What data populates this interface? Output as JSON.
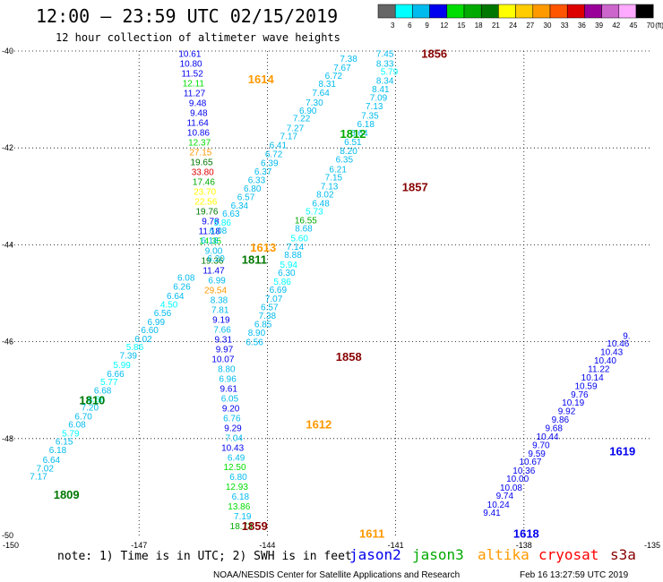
{
  "header": {
    "title": "12:00 – 23:59 UTC 02/15/2019",
    "subtitle": "12 hour collection of altimeter wave heights"
  },
  "colorbar": {
    "ticks": [
      "3",
      "6",
      "9",
      "12",
      "15",
      "18",
      "21",
      "24",
      "27",
      "30",
      "33",
      "36",
      "39",
      "42",
      "45",
      "70"
    ],
    "unit": "(ft)",
    "colors": [
      "#666666",
      "#00ffff",
      "#00bbee",
      "#0000ee",
      "#00dd00",
      "#00aa00",
      "#007700",
      "#ffff00",
      "#ffcc00",
      "#ff9900",
      "#ff5500",
      "#dd0000",
      "#990099",
      "#cc66cc",
      "#ffaaff",
      "#000000"
    ]
  },
  "axes": {
    "lon_labels": [
      "-150",
      "-147",
      "-144",
      "-141",
      "-138",
      "-135"
    ],
    "lat_labels": [
      "-40",
      "-42",
      "-44",
      "-46",
      "-48",
      "-50"
    ]
  },
  "footer": {
    "note": "note:  1) Time is in UTC;  2) SWH is in feet",
    "legend": [
      {
        "name": "jason2",
        "color": "#0000ee"
      },
      {
        "name": "jason3",
        "color": "#00aa00"
      },
      {
        "name": "altika",
        "color": "#ff9900"
      },
      {
        "name": "cryosat",
        "color": "#ff0000"
      },
      {
        "name": "s3a",
        "color": "#880000"
      }
    ],
    "credit": "NOAA/NESDIS Center for Satellite Applications and Research",
    "timestamp": "Feb 16 13:27:59 UTC 2019"
  },
  "tracks": [
    {
      "id": "1614",
      "label": "1614",
      "label_color": "#ff9900",
      "label_lon": -145.5,
      "label_lat": -40.57,
      "points": [
        {
          "v": "10.61",
          "c": "#0000ee"
        },
        {
          "v": "10.80",
          "c": "#0000ee"
        },
        {
          "v": "11.52",
          "c": "#0000ee"
        },
        {
          "v": "12.11",
          "c": "#00dd00"
        },
        {
          "v": "11.27",
          "c": "#0000ee"
        },
        {
          "v": "9.48",
          "c": "#0000ee"
        },
        {
          "v": "9.48",
          "c": "#0000ee"
        },
        {
          "v": "11.64",
          "c": "#0000ee"
        },
        {
          "v": "10.86",
          "c": "#0000ee"
        },
        {
          "v": "12.37",
          "c": "#00dd00"
        },
        {
          "v": "27.15",
          "c": "#ff9900"
        },
        {
          "v": "19.65",
          "c": "#007700"
        },
        {
          "v": "33.80",
          "c": "#dd0000"
        },
        {
          "v": "17.46",
          "c": "#00aa00"
        },
        {
          "v": "23.70",
          "c": "#ffff00"
        },
        {
          "v": "22.56",
          "c": "#ffff00"
        },
        {
          "v": "19.76",
          "c": "#007700"
        },
        {
          "v": "9.78",
          "c": "#0000ee"
        },
        {
          "v": "11.18",
          "c": "#0000ee"
        },
        {
          "v": "14.35",
          "c": "#00dd00"
        },
        {
          "v": "9.00",
          "c": "#00bbee"
        },
        {
          "v": "19.36",
          "c": "#007700"
        },
        {
          "v": "11.47",
          "c": "#0000ee"
        },
        {
          "v": "6.99",
          "c": "#00bbee"
        },
        {
          "v": "29.54",
          "c": "#ff9900"
        },
        {
          "v": "8.38",
          "c": "#00bbee"
        },
        {
          "v": "7.81",
          "c": "#00bbee"
        },
        {
          "v": "9.19",
          "c": "#0000ee"
        },
        {
          "v": "7.66",
          "c": "#00bbee"
        },
        {
          "v": "9.31",
          "c": "#0000ee"
        },
        {
          "v": "9.97",
          "c": "#0000ee"
        },
        {
          "v": "10.07",
          "c": "#0000ee"
        },
        {
          "v": "8.80",
          "c": "#00bbee"
        },
        {
          "v": "6.96",
          "c": "#00bbee"
        },
        {
          "v": "9.61",
          "c": "#0000ee"
        },
        {
          "v": "6.05",
          "c": "#00bbee"
        },
        {
          "v": "9.20",
          "c": "#0000ee"
        },
        {
          "v": "6.76",
          "c": "#00bbee"
        },
        {
          "v": "9.29",
          "c": "#0000ee"
        },
        {
          "v": "7.04",
          "c": "#00bbee"
        },
        {
          "v": "10.43",
          "c": "#0000ee"
        },
        {
          "v": "6.49",
          "c": "#00bbee"
        },
        {
          "v": "12.50",
          "c": "#00dd00"
        },
        {
          "v": "6.80",
          "c": "#00bbee"
        },
        {
          "v": "12.93",
          "c": "#00dd00"
        },
        {
          "v": "6.18",
          "c": "#00bbee"
        },
        {
          "v": "13.86",
          "c": "#00dd00"
        },
        {
          "v": "7.19",
          "c": "#00bbee"
        },
        {
          "v": "18.73",
          "c": "#00aa00"
        }
      ]
    }
  ],
  "labels": [
    {
      "t": "7.45",
      "c": "#00bbee",
      "lon": -141.25,
      "lat": -40.05
    },
    {
      "t": "7.38",
      "c": "#00bbee",
      "lon": -142.1,
      "lat": -40.15
    },
    {
      "t": "7.67",
      "c": "#00bbee",
      "lon": -142.25,
      "lat": -40.33
    },
    {
      "t": "6.72",
      "c": "#00bbee",
      "lon": -142.45,
      "lat": -40.5
    },
    {
      "t": "8.31",
      "c": "#00bbee",
      "lon": -142.6,
      "lat": -40.67
    },
    {
      "t": "7.64",
      "c": "#00bbee",
      "lon": -142.75,
      "lat": -40.85
    },
    {
      "t": "7.30",
      "c": "#00bbee",
      "lon": -142.9,
      "lat": -41.05
    },
    {
      "t": "6.90",
      "c": "#00bbee",
      "lon": -143.05,
      "lat": -41.22
    },
    {
      "t": "7.22",
      "c": "#00bbee",
      "lon": -143.2,
      "lat": -41.38
    },
    {
      "t": "7.27",
      "c": "#00bbee",
      "lon": -143.35,
      "lat": -41.58
    },
    {
      "t": "7.17",
      "c": "#00bbee",
      "lon": -143.5,
      "lat": -41.75
    },
    {
      "t": "6.41",
      "c": "#00bbee",
      "lon": -143.75,
      "lat": -41.93
    },
    {
      "t": "6.72",
      "c": "#00bbee",
      "lon": -143.85,
      "lat": -42.12
    },
    {
      "t": "6.39",
      "c": "#00bbee",
      "lon": -143.95,
      "lat": -42.3
    },
    {
      "t": "6.37",
      "c": "#00bbee",
      "lon": -144.1,
      "lat": -42.48
    },
    {
      "t": "6.33",
      "c": "#00bbee",
      "lon": -144.25,
      "lat": -42.65
    },
    {
      "t": "6.80",
      "c": "#00bbee",
      "lon": -144.35,
      "lat": -42.83
    },
    {
      "t": "6.57",
      "c": "#00bbee",
      "lon": -144.5,
      "lat": -43.0
    },
    {
      "t": "6.34",
      "c": "#00bbee",
      "lon": -144.65,
      "lat": -43.18
    },
    {
      "t": "6.63",
      "c": "#00bbee",
      "lon": -144.85,
      "lat": -43.35
    },
    {
      "t": "5.86",
      "c": "#00ffff",
      "lon": -145.05,
      "lat": -43.53
    },
    {
      "t": "6.08",
      "c": "#00bbee",
      "lon": -145.15,
      "lat": -43.7
    },
    {
      "t": "6.18",
      "c": "#00bbee",
      "lon": -145.35,
      "lat": -43.9
    },
    {
      "t": "6.20",
      "c": "#00bbee",
      "lon": -145.2,
      "lat": -44.27
    },
    {
      "t": "6.08",
      "c": "#00bbee",
      "lon": -145.9,
      "lat": -44.67
    },
    {
      "t": "6.26",
      "c": "#00bbee",
      "lon": -146.0,
      "lat": -44.85
    },
    {
      "t": "6.64",
      "c": "#00bbee",
      "lon": -146.15,
      "lat": -45.05
    },
    {
      "t": "4.50",
      "c": "#00ffff",
      "lon": -146.3,
      "lat": -45.22
    },
    {
      "t": "6.56",
      "c": "#00bbee",
      "lon": -146.45,
      "lat": -45.4
    },
    {
      "t": "6.99",
      "c": "#00bbee",
      "lon": -146.6,
      "lat": -45.58
    },
    {
      "t": "6.60",
      "c": "#00bbee",
      "lon": -146.75,
      "lat": -45.75
    },
    {
      "t": "6.02",
      "c": "#00bbee",
      "lon": -146.9,
      "lat": -45.93
    },
    {
      "t": "5.86",
      "c": "#00ffff",
      "lon": -147.1,
      "lat": -46.1
    },
    {
      "t": "7.39",
      "c": "#00bbee",
      "lon": -147.25,
      "lat": -46.28
    },
    {
      "t": "5.99",
      "c": "#00ffff",
      "lon": -147.4,
      "lat": -46.47
    },
    {
      "t": "6.66",
      "c": "#00bbee",
      "lon": -147.55,
      "lat": -46.65
    },
    {
      "t": "5.77",
      "c": "#00ffff",
      "lon": -147.7,
      "lat": -46.82
    },
    {
      "t": "6.68",
      "c": "#00bbee",
      "lon": -147.85,
      "lat": -47.0
    },
    {
      "t": "5.66",
      "c": "#00ffff",
      "lon": -148.0,
      "lat": -47.18
    },
    {
      "t": "7.20",
      "c": "#00bbee",
      "lon": -148.15,
      "lat": -47.35
    },
    {
      "t": "6.70",
      "c": "#00bbee",
      "lon": -148.3,
      "lat": -47.53
    },
    {
      "t": "6.08",
      "c": "#00bbee",
      "lon": -148.45,
      "lat": -47.7
    },
    {
      "t": "5.79",
      "c": "#00ffff",
      "lon": -148.6,
      "lat": -47.88
    },
    {
      "t": "6.15",
      "c": "#00bbee",
      "lon": -148.75,
      "lat": -48.05
    },
    {
      "t": "6.18",
      "c": "#00bbee",
      "lon": -148.9,
      "lat": -48.23
    },
    {
      "t": "6.64",
      "c": "#00bbee",
      "lon": -149.05,
      "lat": -48.43
    },
    {
      "t": "7.02",
      "c": "#00bbee",
      "lon": -149.2,
      "lat": -48.6
    },
    {
      "t": "7.17",
      "c": "#00bbee",
      "lon": -149.35,
      "lat": -48.77
    },
    {
      "t": "8.33",
      "c": "#00bbee",
      "lon": -141.25,
      "lat": -40.25
    },
    {
      "t": "5.79",
      "c": "#00ffff",
      "lon": -141.15,
      "lat": -40.42
    },
    {
      "t": "8.34",
      "c": "#00bbee",
      "lon": -141.25,
      "lat": -40.6
    },
    {
      "t": "8.41",
      "c": "#00bbee",
      "lon": -141.35,
      "lat": -40.78
    },
    {
      "t": "7.09",
      "c": "#00bbee",
      "lon": -141.4,
      "lat": -40.95
    },
    {
      "t": "7.13",
      "c": "#00bbee",
      "lon": -141.5,
      "lat": -41.13
    },
    {
      "t": "7.35",
      "c": "#00bbee",
      "lon": -141.6,
      "lat": -41.32
    },
    {
      "t": "6.18",
      "c": "#00bbee",
      "lon": -141.7,
      "lat": -41.5
    },
    {
      "t": "6.64",
      "c": "#00bbee",
      "lon": -141.85,
      "lat": -41.68
    },
    {
      "t": "6.51",
      "c": "#00bbee",
      "lon": -142.0,
      "lat": -41.87
    },
    {
      "t": "8.20",
      "c": "#00bbee",
      "lon": -142.1,
      "lat": -42.05
    },
    {
      "t": "6.35",
      "c": "#00bbee",
      "lon": -142.2,
      "lat": -42.23
    },
    {
      "t": "6.21",
      "c": "#00bbee",
      "lon": -142.35,
      "lat": -42.43
    },
    {
      "t": "7.15",
      "c": "#00bbee",
      "lon": -142.45,
      "lat": -42.6
    },
    {
      "t": "7.13",
      "c": "#00bbee",
      "lon": -142.55,
      "lat": -42.78
    },
    {
      "t": "8.02",
      "c": "#00bbee",
      "lon": -142.65,
      "lat": -42.95
    },
    {
      "t": "6.48",
      "c": "#00bbee",
      "lon": -142.75,
      "lat": -43.13
    },
    {
      "t": "5.73",
      "c": "#00ffff",
      "lon": -142.9,
      "lat": -43.3
    },
    {
      "t": "16.55",
      "c": "#00aa00",
      "lon": -143.1,
      "lat": -43.48
    },
    {
      "t": "8.68",
      "c": "#00bbee",
      "lon": -143.15,
      "lat": -43.65
    },
    {
      "t": "5.60",
      "c": "#00ffff",
      "lon": -143.25,
      "lat": -43.85
    },
    {
      "t": "7.14",
      "c": "#00bbee",
      "lon": -143.35,
      "lat": -44.03
    },
    {
      "t": "8.88",
      "c": "#00bbee",
      "lon": -143.4,
      "lat": -44.2
    },
    {
      "t": "5.94",
      "c": "#00ffff",
      "lon": -143.5,
      "lat": -44.4
    },
    {
      "t": "6.30",
      "c": "#00bbee",
      "lon": -143.55,
      "lat": -44.57
    },
    {
      "t": "5.86",
      "c": "#00ffff",
      "lon": -143.65,
      "lat": -44.75
    },
    {
      "t": "6.69",
      "c": "#00bbee",
      "lon": -143.75,
      "lat": -44.92
    },
    {
      "t": "7.07",
      "c": "#00bbee",
      "lon": -143.85,
      "lat": -45.1
    },
    {
      "t": "6.57",
      "c": "#00bbee",
      "lon": -143.95,
      "lat": -45.28
    },
    {
      "t": "7.38",
      "c": "#00bbee",
      "lon": -144.0,
      "lat": -45.45
    },
    {
      "t": "6.85",
      "c": "#00bbee",
      "lon": -144.1,
      "lat": -45.63
    },
    {
      "t": "8.90",
      "c": "#00bbee",
      "lon": -144.25,
      "lat": -45.8
    },
    {
      "t": "6.56",
      "c": "#00bbee",
      "lon": -144.3,
      "lat": -46.0
    },
    {
      "t": "9.41",
      "c": "#0000ee",
      "lon": -138.75,
      "lat": -49.52
    },
    {
      "t": "10.24",
      "c": "#0000ee",
      "lon": -138.6,
      "lat": -49.35
    },
    {
      "t": "9.74",
      "c": "#0000ee",
      "lon": -138.45,
      "lat": -49.17
    },
    {
      "t": "10.08",
      "c": "#0000ee",
      "lon": -138.3,
      "lat": -49.0
    },
    {
      "t": "10.00",
      "c": "#0000ee",
      "lon": -138.15,
      "lat": -48.82
    },
    {
      "t": "10.36",
      "c": "#0000ee",
      "lon": -138.0,
      "lat": -48.65
    },
    {
      "t": "10.67",
      "c": "#0000ee",
      "lon": -137.85,
      "lat": -48.47
    },
    {
      "t": "9.59",
      "c": "#0000ee",
      "lon": -137.7,
      "lat": -48.3
    },
    {
      "t": "9.70",
      "c": "#0000ee",
      "lon": -137.6,
      "lat": -48.12
    },
    {
      "t": "10.44",
      "c": "#0000ee",
      "lon": -137.45,
      "lat": -47.95
    },
    {
      "t": "9.68",
      "c": "#0000ee",
      "lon": -137.3,
      "lat": -47.77
    },
    {
      "t": "9.86",
      "c": "#0000ee",
      "lon": -137.15,
      "lat": -47.6
    },
    {
      "t": "9.92",
      "c": "#0000ee",
      "lon": -137.0,
      "lat": -47.42
    },
    {
      "t": "10.19",
      "c": "#0000ee",
      "lon": -136.85,
      "lat": -47.25
    },
    {
      "t": "9.76",
      "c": "#0000ee",
      "lon": -136.7,
      "lat": -47.08
    },
    {
      "t": "10.59",
      "c": "#0000ee",
      "lon": -136.55,
      "lat": -46.9
    },
    {
      "t": "10.14",
      "c": "#0000ee",
      "lon": -136.4,
      "lat": -46.73
    },
    {
      "t": "11.22",
      "c": "#0000ee",
      "lon": -136.25,
      "lat": -46.55
    },
    {
      "t": "10.40",
      "c": "#0000ee",
      "lon": -136.1,
      "lat": -46.38
    },
    {
      "t": "10.43",
      "c": "#0000ee",
      "lon": -135.95,
      "lat": -46.2
    },
    {
      "t": "10.46",
      "c": "#0000ee",
      "lon": -135.8,
      "lat": -46.03
    },
    {
      "t": "9.",
      "c": "#0000ee",
      "lon": -135.6,
      "lat": -45.87
    }
  ],
  "pass_labels": [
    {
      "t": "1856",
      "c": "#880000",
      "lon": -140.4,
      "lat": -40.05
    },
    {
      "t": "1812",
      "c": "#00aa00",
      "lon": -142.3,
      "lat": -41.7
    },
    {
      "t": "1857",
      "c": "#880000",
      "lon": -140.85,
      "lat": -42.8
    },
    {
      "t": "1613",
      "c": "#ff9900",
      "lon": -144.4,
      "lat": -44.05
    },
    {
      "t": "1811",
      "c": "#007700",
      "lon": -144.6,
      "lat": -44.3
    },
    {
      "t": "1858",
      "c": "#880000",
      "lon": -142.4,
      "lat": -46.3
    },
    {
      "t": "1810",
      "c": "#007700",
      "lon": -148.4,
      "lat": -47.2
    },
    {
      "t": "1612",
      "c": "#ff9900",
      "lon": -143.1,
      "lat": -47.7
    },
    {
      "t": "1809",
      "c": "#007700",
      "lon": -149.0,
      "lat": -49.15
    },
    {
      "t": "1859",
      "c": "#880000",
      "lon": -144.6,
      "lat": -49.8
    },
    {
      "t": "1611",
      "c": "#ff9900",
      "lon": -141.85,
      "lat": -49.95
    },
    {
      "t": "1619",
      "c": "#0000ee",
      "lon": -136.0,
      "lat": -48.25
    },
    {
      "t": "1618",
      "c": "#0000ee",
      "lon": -138.25,
      "lat": -49.95
    }
  ]
}
